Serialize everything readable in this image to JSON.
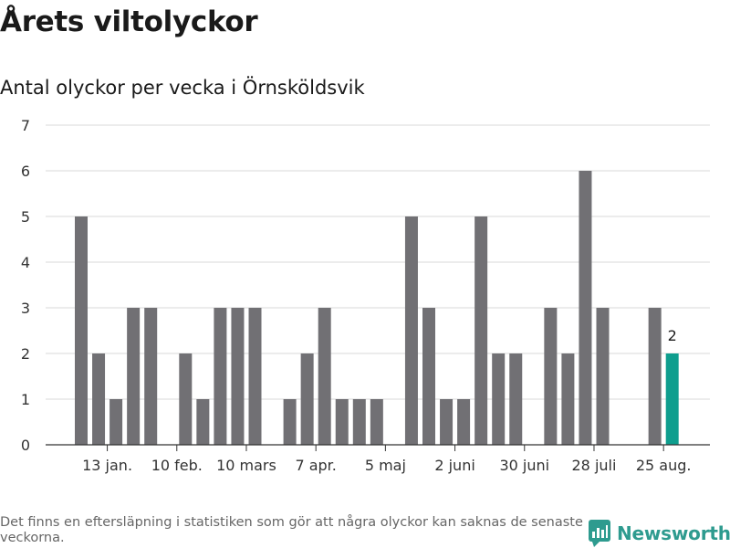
{
  "header": {
    "title": "Årets viltolyckor",
    "subtitle": "Antal olyckor per vecka i Örnsköldsvik"
  },
  "footer": {
    "note": "Det finns en eftersläpning i statistiken som gör att några olyckor kan saknas de senaste veckorna.",
    "brand": "Newsworthy"
  },
  "colors": {
    "bar": "#717074",
    "highlight": "#0e9e8e",
    "grid": "#d9d9d9",
    "brand": "#2e9b8f"
  },
  "chart_data": {
    "type": "bar",
    "title": "Årets viltolyckor",
    "subtitle": "Antal olyckor per vecka i Örnsköldsvik",
    "xlabel": "",
    "ylabel": "",
    "ylim": [
      0,
      7
    ],
    "yticks": [
      0,
      1,
      2,
      3,
      4,
      5,
      6,
      7
    ],
    "grid": true,
    "values": [
      5,
      2,
      1,
      3,
      3,
      0,
      2,
      1,
      3,
      3,
      3,
      0,
      1,
      2,
      3,
      1,
      1,
      1,
      0,
      5,
      3,
      1,
      1,
      5,
      2,
      2,
      0,
      3,
      2,
      6,
      3,
      0,
      0,
      3,
      2
    ],
    "x_tick_labels": [
      {
        "index": 1,
        "label": "13 jan."
      },
      {
        "index": 5,
        "label": "10 feb."
      },
      {
        "index": 9,
        "label": "10 mars"
      },
      {
        "index": 13,
        "label": "7 apr."
      },
      {
        "index": 17,
        "label": "5 maj"
      },
      {
        "index": 21,
        "label": "2 juni"
      },
      {
        "index": 25,
        "label": "30 juni"
      },
      {
        "index": 29,
        "label": "28 juli"
      },
      {
        "index": 33,
        "label": "25 aug."
      }
    ],
    "highlight_index": 34,
    "highlight_label": "2"
  }
}
